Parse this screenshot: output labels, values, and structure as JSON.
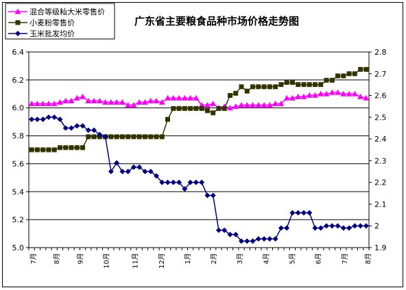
{
  "chart_data": {
    "type": "line",
    "title": "广东省主要粮食品种市场价格走势图",
    "left_axis": {
      "ylim": [
        5.0,
        6.4
      ],
      "ticks": [
        "5.0",
        "5.2",
        "5.4",
        "5.6",
        "5.8",
        "6.0",
        "6.2",
        "6.4"
      ]
    },
    "right_axis": {
      "ylim": [
        1.9,
        2.8
      ],
      "ticks": [
        "1.9",
        "2",
        "2.1",
        "2.2",
        "2.3",
        "2.4",
        "2.5",
        "2.6",
        "2.7",
        "2.8"
      ]
    },
    "grid": true,
    "legend": "top-left",
    "x_tick_labels": [
      "7月",
      "8月",
      "9月",
      "10月",
      "11月",
      "12月",
      "1月",
      "2月",
      "3月",
      "4月",
      "5月",
      "6月",
      "7月",
      "8月"
    ],
    "num_points": 60,
    "series": [
      {
        "name": "混合等级籼大米零售价",
        "axis": "left",
        "color": "#ff00ff",
        "marker": "triangle",
        "values": [
          6.03,
          6.03,
          6.03,
          6.03,
          6.03,
          6.04,
          6.05,
          6.05,
          6.07,
          6.08,
          6.05,
          6.05,
          6.05,
          6.04,
          6.04,
          6.04,
          6.04,
          6.02,
          6.02,
          6.04,
          6.04,
          6.05,
          6.05,
          6.04,
          6.07,
          6.07,
          6.07,
          6.07,
          6.07,
          6.07,
          6.02,
          6.02,
          6.03,
          6.0,
          6.01,
          6.0,
          6.01,
          6.02,
          6.02,
          6.02,
          6.02,
          6.02,
          6.02,
          6.03,
          6.03,
          6.07,
          6.07,
          6.08,
          6.08,
          6.09,
          6.09,
          6.1,
          6.1,
          6.11,
          6.11,
          6.1,
          6.1,
          6.1,
          6.08,
          6.07
        ]
      },
      {
        "name": "小麦粉零售价",
        "axis": "right",
        "color": "#333300",
        "marker": "square",
        "values": [
          2.35,
          2.35,
          2.35,
          2.35,
          2.35,
          2.36,
          2.36,
          2.36,
          2.36,
          2.36,
          2.41,
          2.41,
          2.41,
          2.41,
          2.41,
          2.41,
          2.41,
          2.41,
          2.41,
          2.41,
          2.41,
          2.41,
          2.41,
          2.41,
          2.49,
          2.54,
          2.54,
          2.54,
          2.54,
          2.54,
          2.54,
          2.53,
          2.52,
          2.54,
          2.54,
          2.6,
          2.61,
          2.64,
          2.62,
          2.64,
          2.64,
          2.64,
          2.64,
          2.64,
          2.65,
          2.66,
          2.66,
          2.65,
          2.65,
          2.65,
          2.65,
          2.65,
          2.67,
          2.67,
          2.69,
          2.69,
          2.7,
          2.7,
          2.72,
          2.72
        ]
      },
      {
        "name": "玉米批发均价",
        "axis": "right",
        "color": "#000080",
        "marker": "diamond",
        "values": [
          2.49,
          2.49,
          2.49,
          2.5,
          2.5,
          2.49,
          2.45,
          2.45,
          2.46,
          2.46,
          2.44,
          2.44,
          2.42,
          2.41,
          2.25,
          2.29,
          2.25,
          2.25,
          2.27,
          2.27,
          2.25,
          2.25,
          2.23,
          2.2,
          2.2,
          2.2,
          2.2,
          2.17,
          2.2,
          2.2,
          2.2,
          2.14,
          2.14,
          1.98,
          1.98,
          1.96,
          1.96,
          1.93,
          1.93,
          1.93,
          1.94,
          1.94,
          1.94,
          1.94,
          1.99,
          1.99,
          2.06,
          2.06,
          2.06,
          2.06,
          1.99,
          1.99,
          2.0,
          2.0,
          2.0,
          1.99,
          1.99,
          2.0,
          2.0,
          2.0
        ]
      }
    ]
  }
}
